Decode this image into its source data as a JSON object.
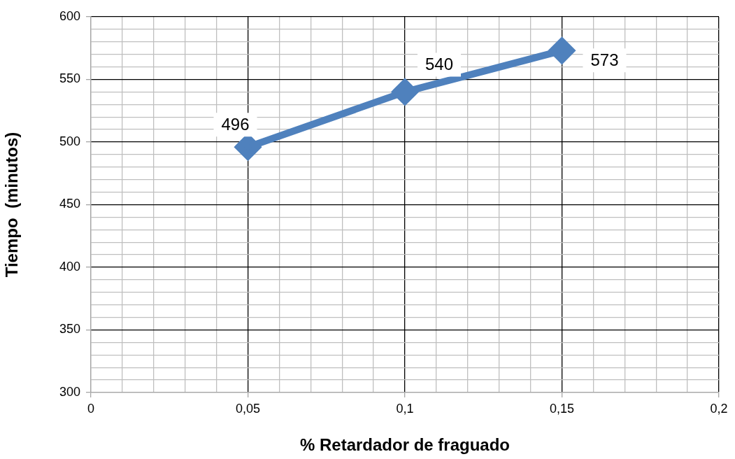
{
  "chart_data": {
    "type": "line",
    "xlabel": "% Retardador de fraguado",
    "ylabel": "Tiempo  (minutos)",
    "x": [
      0.05,
      0.1,
      0.15
    ],
    "series": [
      {
        "color": "#4f81bd",
        "values": [
          496,
          540,
          573
        ]
      }
    ],
    "xlim": [
      0,
      0.2
    ],
    "xticks": [
      0,
      {
        "value": 0.01,
        "label": null
      },
      {
        "value": 0.02,
        "label": null
      },
      {
        "value": 0.03,
        "label": null
      },
      {
        "value": 0.04,
        "label": null
      },
      {
        "value": 0.05,
        "label": "0,05"
      },
      {
        "value": 0.06,
        "label": null
      },
      {
        "value": 0.07,
        "label": null
      },
      {
        "value": 0.08,
        "label": null
      },
      {
        "value": 0.09,
        "label": null
      },
      {
        "value": 0.1,
        "label": "0,1"
      },
      {
        "value": 0.11,
        "label": null
      },
      {
        "value": 0.12,
        "label": null
      },
      {
        "value": 0.13,
        "label": null
      },
      {
        "value": 0.14,
        "label": null
      },
      {
        "value": 0.15,
        "label": "0,15"
      },
      {
        "value": 0.16,
        "label": null
      },
      {
        "value": 0.17,
        "label": null
      },
      {
        "value": 0.18,
        "label": null
      },
      {
        "value": 0.19,
        "label": null
      },
      {
        "value": 0.2,
        "label": "0,2"
      }
    ],
    "ylim": [
      300,
      600
    ],
    "yticks": [
      300,
      {
        "value": 310,
        "label": null
      },
      {
        "value": 320,
        "label": null
      },
      {
        "value": 330,
        "label": null
      },
      {
        "value": 340,
        "label": null
      },
      350,
      {
        "value": 360,
        "label": null
      },
      {
        "value": 370,
        "label": null
      },
      {
        "value": 380,
        "label": null
      },
      {
        "value": 390,
        "label": null
      },
      400,
      {
        "value": 410,
        "label": null
      },
      {
        "value": 420,
        "label": null
      },
      {
        "value": 430,
        "label": null
      },
      {
        "value": 440,
        "label": null
      },
      450,
      {
        "value": 460,
        "label": null
      },
      {
        "value": 470,
        "label": null
      },
      {
        "value": 480,
        "label": null
      },
      {
        "value": 490,
        "label": null
      },
      500,
      {
        "value": 510,
        "label": null
      },
      {
        "value": 520,
        "label": null
      },
      {
        "value": 530,
        "label": null
      },
      {
        "value": 540,
        "label": null
      },
      550,
      {
        "value": 560,
        "label": null
      },
      {
        "value": 570,
        "label": null
      },
      {
        "value": 580,
        "label": null
      },
      {
        "value": 590,
        "label": null
      },
      600
    ],
    "grid": true,
    "marker": "diamond",
    "line_style": "solid",
    "data_labels": true
  }
}
